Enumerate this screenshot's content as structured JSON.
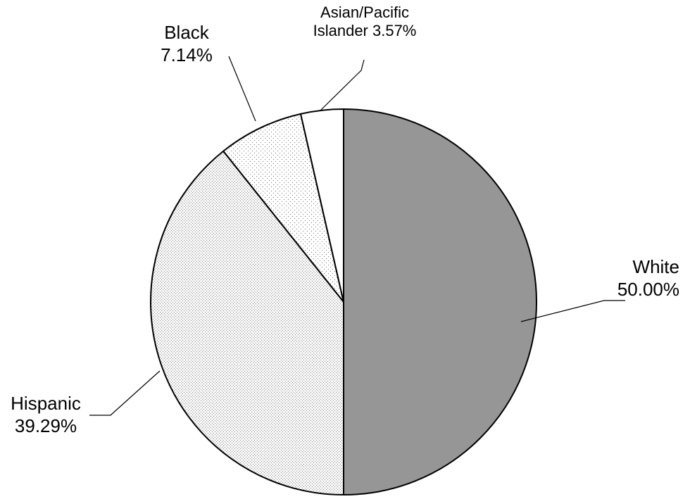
{
  "chart_data": {
    "type": "pie",
    "title": "",
    "slices": [
      {
        "name": "White",
        "value": 50.0,
        "label_lines": [
          "White",
          "50.00%"
        ],
        "fill": "#969696",
        "pattern": "solid"
      },
      {
        "name": "Hispanic",
        "value": 39.29,
        "label_lines": [
          "Hispanic",
          "39.29%"
        ],
        "fill": "#f4f4f4",
        "pattern": "fine-dots"
      },
      {
        "name": "Black",
        "value": 7.14,
        "label_lines": [
          "Black",
          "7.14%"
        ],
        "fill": "#ffffff",
        "pattern": "sparse-dots"
      },
      {
        "name": "Asian/Pacific Islander",
        "value": 3.57,
        "label_lines": [
          "Asian/Pacific",
          "Islander 3.57%"
        ],
        "fill": "#ffffff",
        "pattern": "solid"
      }
    ],
    "start_angle": "12 o'clock",
    "direction": "clockwise",
    "legend": "none",
    "outline_color": "#000000"
  }
}
